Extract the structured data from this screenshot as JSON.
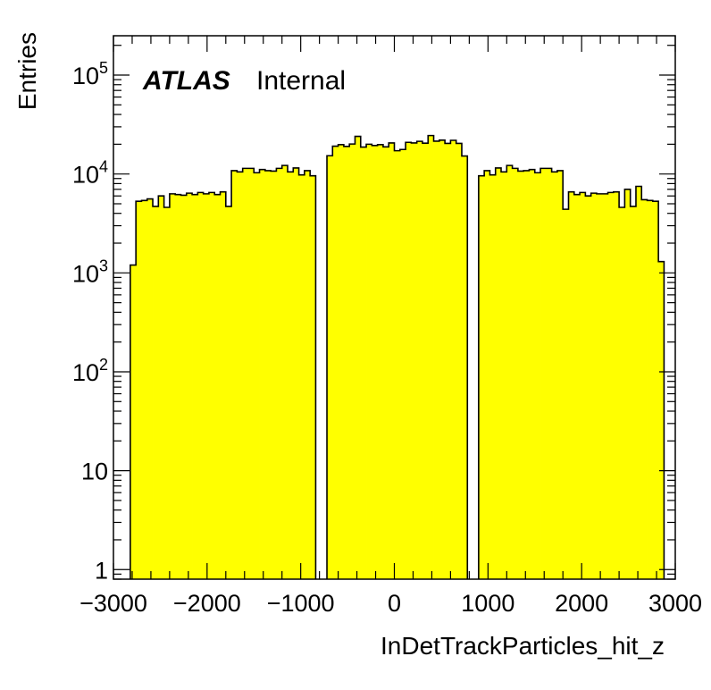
{
  "chart_data": {
    "type": "bar",
    "histogram": true,
    "xlabel": "InDetTrackParticles_hit_z",
    "ylabel": "Entries",
    "xlim": [
      -3000,
      3000
    ],
    "ylim": [
      0.8,
      250000
    ],
    "log_y": true,
    "grid": false,
    "fill_color": "#ffff00",
    "line_color": "#000000",
    "xticks": [
      {
        "value": -3000,
        "label": "−3000"
      },
      {
        "value": -2000,
        "label": "−2000"
      },
      {
        "value": -1000,
        "label": "−1000"
      },
      {
        "value": 0,
        "label": "0"
      },
      {
        "value": 1000,
        "label": "1000"
      },
      {
        "value": 2000,
        "label": "2000"
      },
      {
        "value": 3000,
        "label": "3000"
      }
    ],
    "yticks": [
      {
        "value": 1,
        "base": "1",
        "exp": ""
      },
      {
        "value": 10,
        "base": "10",
        "exp": ""
      },
      {
        "value": 100,
        "base": "10",
        "exp": "2"
      },
      {
        "value": 1000,
        "base": "10",
        "exp": "3"
      },
      {
        "value": 10000,
        "base": "10",
        "exp": "4"
      },
      {
        "value": 100000,
        "base": "10",
        "exp": "5"
      }
    ],
    "label_experiment": "ATLAS",
    "label_status": "Internal",
    "bin_width": 60,
    "bin_start": -2820,
    "values": [
      1200,
      5300,
      5400,
      5600,
      4700,
      6000,
      4600,
      6300,
      6200,
      6100,
      6400,
      6200,
      6500,
      6300,
      6500,
      6200,
      6600,
      4700,
      10800,
      10500,
      11400,
      11400,
      10300,
      11100,
      10800,
      10700,
      11400,
      12200,
      10500,
      11500,
      9800,
      10800,
      9600,
      0,
      0,
      15300,
      19100,
      19800,
      19000,
      20100,
      24000,
      18700,
      20000,
      19400,
      19800,
      18800,
      20600,
      17200,
      17700,
      20900,
      20600,
      21400,
      20500,
      24500,
      21500,
      22000,
      20400,
      21900,
      20400,
      15200,
      0,
      0,
      9600,
      10800,
      9800,
      11500,
      10500,
      12200,
      11400,
      10700,
      10800,
      11100,
      10300,
      11400,
      11400,
      10500,
      10800,
      4400,
      6600,
      6200,
      6500,
      6000,
      6400,
      6300,
      6300,
      6500,
      6600,
      4600,
      7000,
      4700,
      7500,
      5500,
      5400,
      5300,
      1300
    ]
  }
}
